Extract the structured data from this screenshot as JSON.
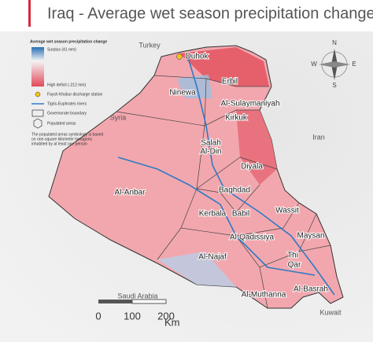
{
  "header": {
    "title": "Iraq - Average wet season precipitation change"
  },
  "legend": {
    "title": "Average wet season precipitation change",
    "surplus": "Surplus (41 mm)",
    "deficit": "High deficit (-212 mm)",
    "station": "Faysh Khabur discharge station",
    "rivers": "Tigris-Euphrates rivers",
    "boundary": "Governorate boundary",
    "populated": "Populated areas",
    "note": [
      "The populated areas symbology is based",
      "on one-square kilometer hexagons",
      "inhabited by at least one person"
    ]
  },
  "countries": [
    "Turkey",
    "Syria",
    "Iran",
    "Saudi Arabia",
    "Kuwait"
  ],
  "governorates": [
    "Duhok",
    "Erbil",
    "Ninewa",
    "Kirkuk",
    "Al-Sulaymaniyah",
    "Salah",
    "Al-Din",
    "Diyala",
    "Al-Anbar",
    "Baghdad",
    "Kerbala",
    "Babil",
    "Wassit",
    "Al-Qadissiya",
    "Maysan",
    "Al-Najaf",
    "Thi",
    "Qar",
    "Al-Muthanna",
    "Al-Basrah"
  ],
  "compass": [
    "N",
    "E",
    "S",
    "W"
  ],
  "scale_bar": {
    "ticks": [
      "0",
      "100",
      "200"
    ],
    "unit": "Km"
  }
}
